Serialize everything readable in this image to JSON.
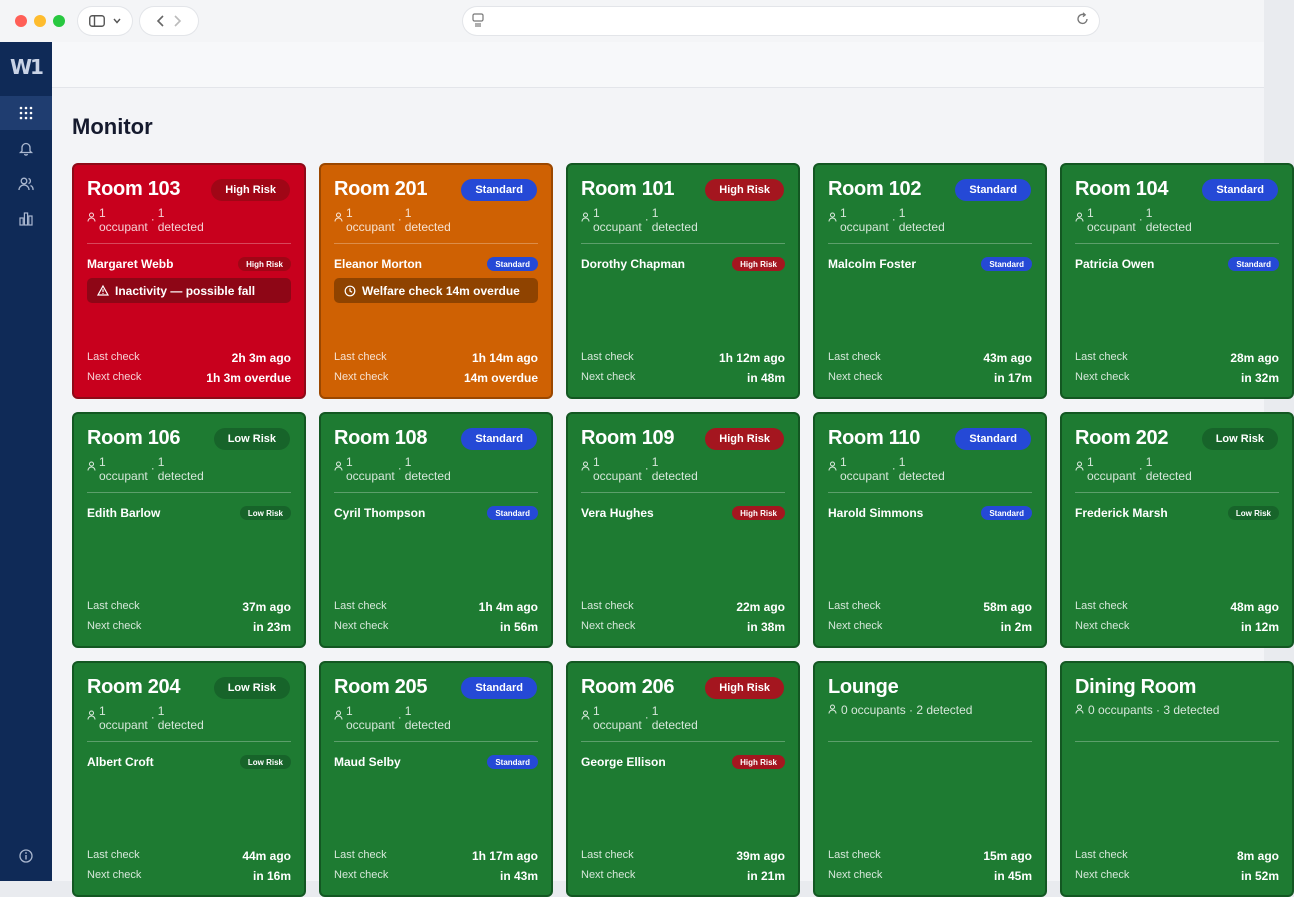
{
  "app": {
    "logo_text": "W1",
    "page_title": "Monitor"
  },
  "browser": {
    "url": ""
  },
  "sidebar": {
    "items": [
      {
        "name": "grid-icon",
        "active": true
      },
      {
        "name": "bell-icon",
        "active": false
      },
      {
        "name": "users-icon",
        "active": false
      },
      {
        "name": "chart-icon",
        "active": false
      }
    ],
    "footer_icon": "info-icon"
  },
  "labels": {
    "last_check": "Last check",
    "next_check": "Next check"
  },
  "colors": {
    "sidebar": "#0f2a57",
    "high_risk_card": "#c8001d",
    "standard_overdue_card": "#cf6103",
    "ok_card": "#1e7b32",
    "badge_high": "#a4161f",
    "badge_standard": "#2549d6",
    "badge_low": "#17642a"
  },
  "rooms": [
    {
      "name": "Room 103",
      "status": "red",
      "risk": "High Risk",
      "risk_class": "high",
      "occ_count": "1",
      "occ_label": "occupant",
      "det_count": "1",
      "det_label": "detected",
      "resident": "Margaret Webb",
      "alert_icon": "warning-icon",
      "alert": "Inactivity — possible fall",
      "last": "2h 3m ago",
      "next": "1h 3m overdue"
    },
    {
      "name": "Room 201",
      "status": "orange",
      "risk": "Standard",
      "risk_class": "std",
      "occ_count": "1",
      "occ_label": "occupant",
      "det_count": "1",
      "det_label": "detected",
      "resident": "Eleanor Morton",
      "alert_icon": "clock-icon",
      "alert": "Welfare check 14m overdue",
      "last": "1h 14m ago",
      "next": "14m overdue"
    },
    {
      "name": "Room 101",
      "status": "green",
      "risk": "High Risk",
      "risk_class": "high",
      "occ_count": "1",
      "occ_label": "occupant",
      "det_count": "1",
      "det_label": "detected",
      "resident": "Dorothy Chapman",
      "last": "1h 12m ago",
      "next": "in 48m"
    },
    {
      "name": "Room 102",
      "status": "green",
      "risk": "Standard",
      "risk_class": "std",
      "occ_count": "1",
      "occ_label": "occupant",
      "det_count": "1",
      "det_label": "detected",
      "resident": "Malcolm Foster",
      "last": "43m ago",
      "next": "in 17m"
    },
    {
      "name": "Room 104",
      "status": "green",
      "risk": "Standard",
      "risk_class": "std",
      "occ_count": "1",
      "occ_label": "occupant",
      "det_count": "1",
      "det_label": "detected",
      "resident": "Patricia Owen",
      "last": "28m ago",
      "next": "in 32m"
    },
    {
      "name": "Room 106",
      "status": "green",
      "risk": "Low Risk",
      "risk_class": "low",
      "occ_count": "1",
      "occ_label": "occupant",
      "det_count": "1",
      "det_label": "detected",
      "resident": "Edith Barlow",
      "last": "37m ago",
      "next": "in 23m"
    },
    {
      "name": "Room 108",
      "status": "green",
      "risk": "Standard",
      "risk_class": "std",
      "occ_count": "1",
      "occ_label": "occupant",
      "det_count": "1",
      "det_label": "detected",
      "resident": "Cyril Thompson",
      "last": "1h 4m ago",
      "next": "in 56m"
    },
    {
      "name": "Room 109",
      "status": "green",
      "risk": "High Risk",
      "risk_class": "high",
      "occ_count": "1",
      "occ_label": "occupant",
      "det_count": "1",
      "det_label": "detected",
      "resident": "Vera Hughes",
      "last": "22m ago",
      "next": "in 38m"
    },
    {
      "name": "Room 110",
      "status": "green",
      "risk": "Standard",
      "risk_class": "std",
      "occ_count": "1",
      "occ_label": "occupant",
      "det_count": "1",
      "det_label": "detected",
      "resident": "Harold Simmons",
      "last": "58m ago",
      "next": "in 2m"
    },
    {
      "name": "Room 202",
      "status": "green",
      "risk": "Low Risk",
      "risk_class": "low",
      "occ_count": "1",
      "occ_label": "occupant",
      "det_count": "1",
      "det_label": "detected",
      "resident": "Frederick Marsh",
      "last": "48m ago",
      "next": "in 12m"
    },
    {
      "name": "Room 204",
      "status": "green",
      "risk": "Low Risk",
      "risk_class": "low",
      "occ_count": "1",
      "occ_label": "occupant",
      "det_count": "1",
      "det_label": "detected",
      "resident": "Albert Croft",
      "last": "44m ago",
      "next": "in 16m"
    },
    {
      "name": "Room 205",
      "status": "green",
      "risk": "Standard",
      "risk_class": "std",
      "occ_count": "1",
      "occ_label": "occupant",
      "det_count": "1",
      "det_label": "detected",
      "resident": "Maud Selby",
      "last": "1h 17m ago",
      "next": "in 43m"
    },
    {
      "name": "Room 206",
      "status": "green",
      "risk": "High Risk",
      "risk_class": "high",
      "occ_count": "1",
      "occ_label": "occupant",
      "det_count": "1",
      "det_label": "detected",
      "resident": "George Ellison",
      "last": "39m ago",
      "next": "in 21m"
    },
    {
      "name": "Lounge",
      "status": "green",
      "shared": true,
      "occ_inline": "0 occupants · 2 detected",
      "last": "15m ago",
      "next": "in 45m"
    },
    {
      "name": "Dining Room",
      "status": "green",
      "shared": true,
      "occ_inline": "0 occupants · 3 detected",
      "last": "8m ago",
      "next": "in 52m"
    }
  ]
}
